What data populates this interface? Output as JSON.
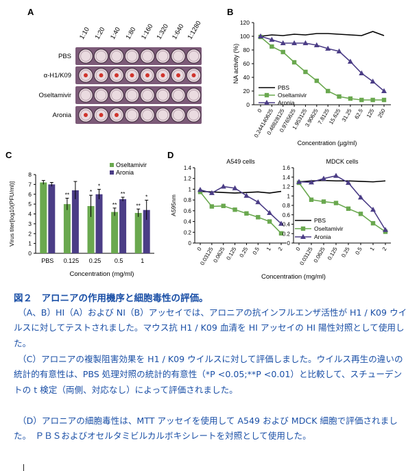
{
  "panel_a": {
    "label": "A",
    "dilutions": [
      "1:10",
      "1:20",
      "1:40",
      "1:80",
      "1:160",
      "1:320",
      "1:640",
      "1:1280"
    ],
    "rows": [
      {
        "label": "PBS",
        "dots": [
          0,
          0,
          0,
          0,
          0,
          0,
          0,
          0
        ]
      },
      {
        "label": "α-H1/K09",
        "dots": [
          1,
          1,
          1,
          1,
          1,
          1,
          1,
          1
        ]
      },
      {
        "label": "Oseltamivir",
        "dots": [
          0,
          0,
          0,
          0,
          0,
          0,
          0,
          0
        ]
      },
      {
        "label": "Aronia",
        "dots": [
          1,
          1,
          1,
          0,
          0,
          0,
          0,
          0
        ]
      }
    ]
  },
  "chart_data": [
    {
      "panel": "B",
      "type": "line",
      "xlabel": "Concentration (µg/ml)",
      "ylabel": "NA activity (%)",
      "ylim": [
        0,
        120
      ],
      "yticks": [
        0,
        20,
        40,
        60,
        80,
        100,
        120
      ],
      "x": [
        "0",
        "0.244140625",
        "0.48828125",
        "0.9765625",
        "1.953125",
        "3.90625",
        "7.8125",
        "15.625",
        "31.25",
        "62.5",
        "125",
        "250"
      ],
      "legend_position": "bottom-left",
      "series": [
        {
          "name": "PBS",
          "color": "#000000",
          "marker": "none",
          "values": [
            100,
            102,
            101,
            103,
            102,
            104,
            104,
            103,
            102,
            101,
            107,
            101
          ]
        },
        {
          "name": "Oseltamivir",
          "color": "#6aa84f",
          "marker": "square",
          "values": [
            99,
            85,
            77,
            62,
            48,
            35,
            20,
            12,
            9,
            7,
            7,
            7
          ]
        },
        {
          "name": "Aronia",
          "color": "#4b3d86",
          "marker": "triangle",
          "values": [
            100,
            95,
            90,
            90,
            90,
            87,
            82,
            78,
            63,
            46,
            34,
            20
          ]
        }
      ]
    },
    {
      "panel": "C",
      "type": "bar",
      "ylabel": "Virus titer[log10(PFU/ml)]",
      "xlabel": "Concentration (mg/ml)",
      "ylim": [
        0,
        8
      ],
      "yticks": [
        0,
        1,
        2,
        3,
        4,
        5,
        6,
        7,
        8
      ],
      "categories": [
        "PBS",
        "0.125",
        "0.25",
        "0.5",
        "1"
      ],
      "legend_position": "top-right",
      "series": [
        {
          "name": "Oseltamivir",
          "color": "#6aa84f",
          "values": [
            7.2,
            5.0,
            4.8,
            4.2,
            4.1
          ],
          "errors": [
            0.2,
            0.6,
            1.1,
            0.4,
            0.4
          ],
          "marks": [
            "",
            "**",
            "*",
            "**",
            "**"
          ]
        },
        {
          "name": "Aronia",
          "color": "#4b3d86",
          "values": [
            7.0,
            6.4,
            6.0,
            5.5,
            4.4
          ],
          "errors": [
            0.2,
            0.9,
            0.5,
            0.2,
            1.0
          ],
          "marks": [
            "",
            "",
            "*",
            "**",
            "*"
          ]
        }
      ]
    },
    {
      "panel": "D",
      "type": "line",
      "subtitle": "A549 cells",
      "ylabel": "A595nm",
      "xlabel": "Concentration  (mg/ml)",
      "ylim": [
        0,
        1.4
      ],
      "yticks": [
        0,
        0.2,
        0.4,
        0.6,
        0.8,
        1,
        1.2,
        1.4
      ],
      "x": [
        "0",
        "0.03125",
        "0.0625",
        "0.125",
        "0.25",
        "0.5",
        "1",
        "2"
      ],
      "series": [
        {
          "name": "PBS",
          "color": "#000000",
          "marker": "none",
          "values": [
            0.96,
            0.95,
            0.94,
            0.93,
            0.94,
            0.95,
            0.93,
            0.96
          ]
        },
        {
          "name": "Oseltamivir",
          "color": "#6aa84f",
          "marker": "square",
          "values": [
            0.95,
            0.68,
            0.69,
            0.62,
            0.55,
            0.48,
            0.4,
            0.18
          ]
        },
        {
          "name": "Aronia",
          "color": "#4b3d86",
          "marker": "triangle",
          "values": [
            0.99,
            0.93,
            1.05,
            1.02,
            0.88,
            0.76,
            0.56,
            0.36
          ]
        }
      ]
    },
    {
      "panel": "D",
      "type": "line",
      "subtitle": "MDCK cells",
      "xlabel": "Concentration  (mg/ml)",
      "ylim": [
        0,
        1.6
      ],
      "yticks": [
        0,
        0.2,
        0.4,
        0.6,
        0.8,
        1,
        1.2,
        1.4,
        1.6
      ],
      "x": [
        "0",
        "0.03125",
        "0.0625",
        "0.125",
        "0.25",
        "0.5",
        "1",
        "2"
      ],
      "legend_position": "bottom-left",
      "series": [
        {
          "name": "PBS",
          "color": "#000000",
          "marker": "none",
          "values": [
            1.3,
            1.32,
            1.33,
            1.32,
            1.32,
            1.31,
            1.3,
            1.32
          ]
        },
        {
          "name": "Oseltamivir",
          "color": "#6aa84f",
          "marker": "square",
          "values": [
            1.28,
            0.92,
            0.88,
            0.85,
            0.73,
            0.62,
            0.42,
            0.24
          ]
        },
        {
          "name": "Aronia",
          "color": "#4b3d86",
          "marker": "triangle",
          "values": [
            1.3,
            1.29,
            1.37,
            1.43,
            1.28,
            0.97,
            0.71,
            0.28
          ]
        }
      ]
    }
  ],
  "caption": {
    "title": "図２　アロニアの作用機序と細胞毒性の評価。",
    "p1": "（A、B）HI（A）および NI（B）アッセイでは、アロニアの抗インフルエンザ活性が H1 / K09 ウイルスに対してテストされました。マウス抗 H1 / K09 血清を HI アッセイの HI 陽性対照として使用した。",
    "p2": "（C）アロニアの複製阻害効果を H1 / K09 ウイルスに対して評価しました。ウイルス再生の違いの統計的有意性は、PBS 処理対照の統計的有意性（*P <0.05;**P <0.01）と比較して、スチューデントの t 検定（両側、対応なし）によって評価されました。",
    "p3": "（D）アロニアの細胞毒性は、MTT アッセイを使用して A549 および MDCK 細胞で評価されました。　ＰＢＳおよびオセルタミビルカルボキシレートを対照として使用した。"
  }
}
